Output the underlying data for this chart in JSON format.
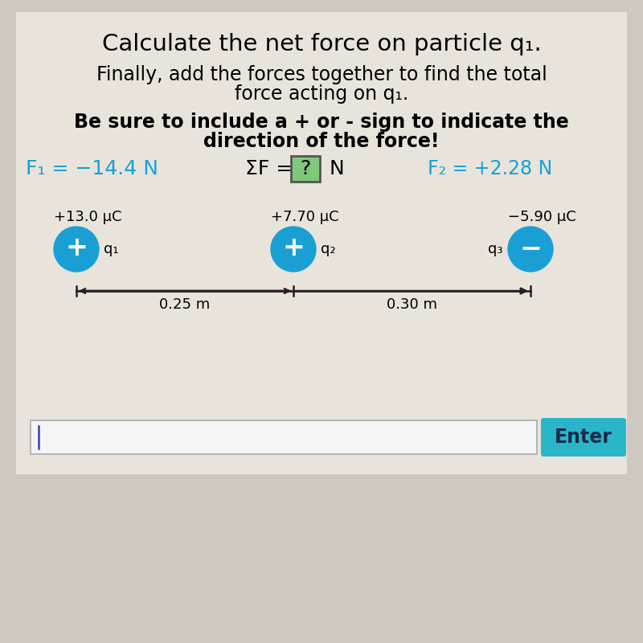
{
  "bg_color": "#cdc8c0",
  "title1": "Calculate the net force on particle q₁.",
  "title2a": "Finally, add the forces together to find the total",
  "title2b": "force acting on q₁.",
  "title3a": "Be sure to include a + or - sign to indicate the",
  "title3b": "direction of the force!",
  "f1_text": "F₁ = −14.4 N",
  "f1_color": "#1a9fd4",
  "sum_prefix": "ΣF = ",
  "sum_question": "?",
  "sum_suffix": " N",
  "sum_box_color": "#7ec87e",
  "sum_box_edge": "#555555",
  "f2_text": "F₂ = +2.28 N",
  "f2_color": "#1a9fd4",
  "q1_charge": "+13.0 μC",
  "q2_charge": "+7.70 μC",
  "q3_charge": "−5.90 μC",
  "q1_label": "q₁",
  "q2_label": "q₂",
  "q3_label": "q₃",
  "q1_sign": "+",
  "q2_sign": "+",
  "q3_sign": "−",
  "dist1": "0.25 m",
  "dist2": "0.30 m",
  "circle_color": "#1a9fd4",
  "enter_bg": "#29b6c8",
  "enter_text": "Enter",
  "enter_text_color": "#1a2a4a",
  "input_box_color": "#f5f5f5",
  "input_cursor_color": "#3344aa",
  "white_area_color": "#e8e4dc"
}
